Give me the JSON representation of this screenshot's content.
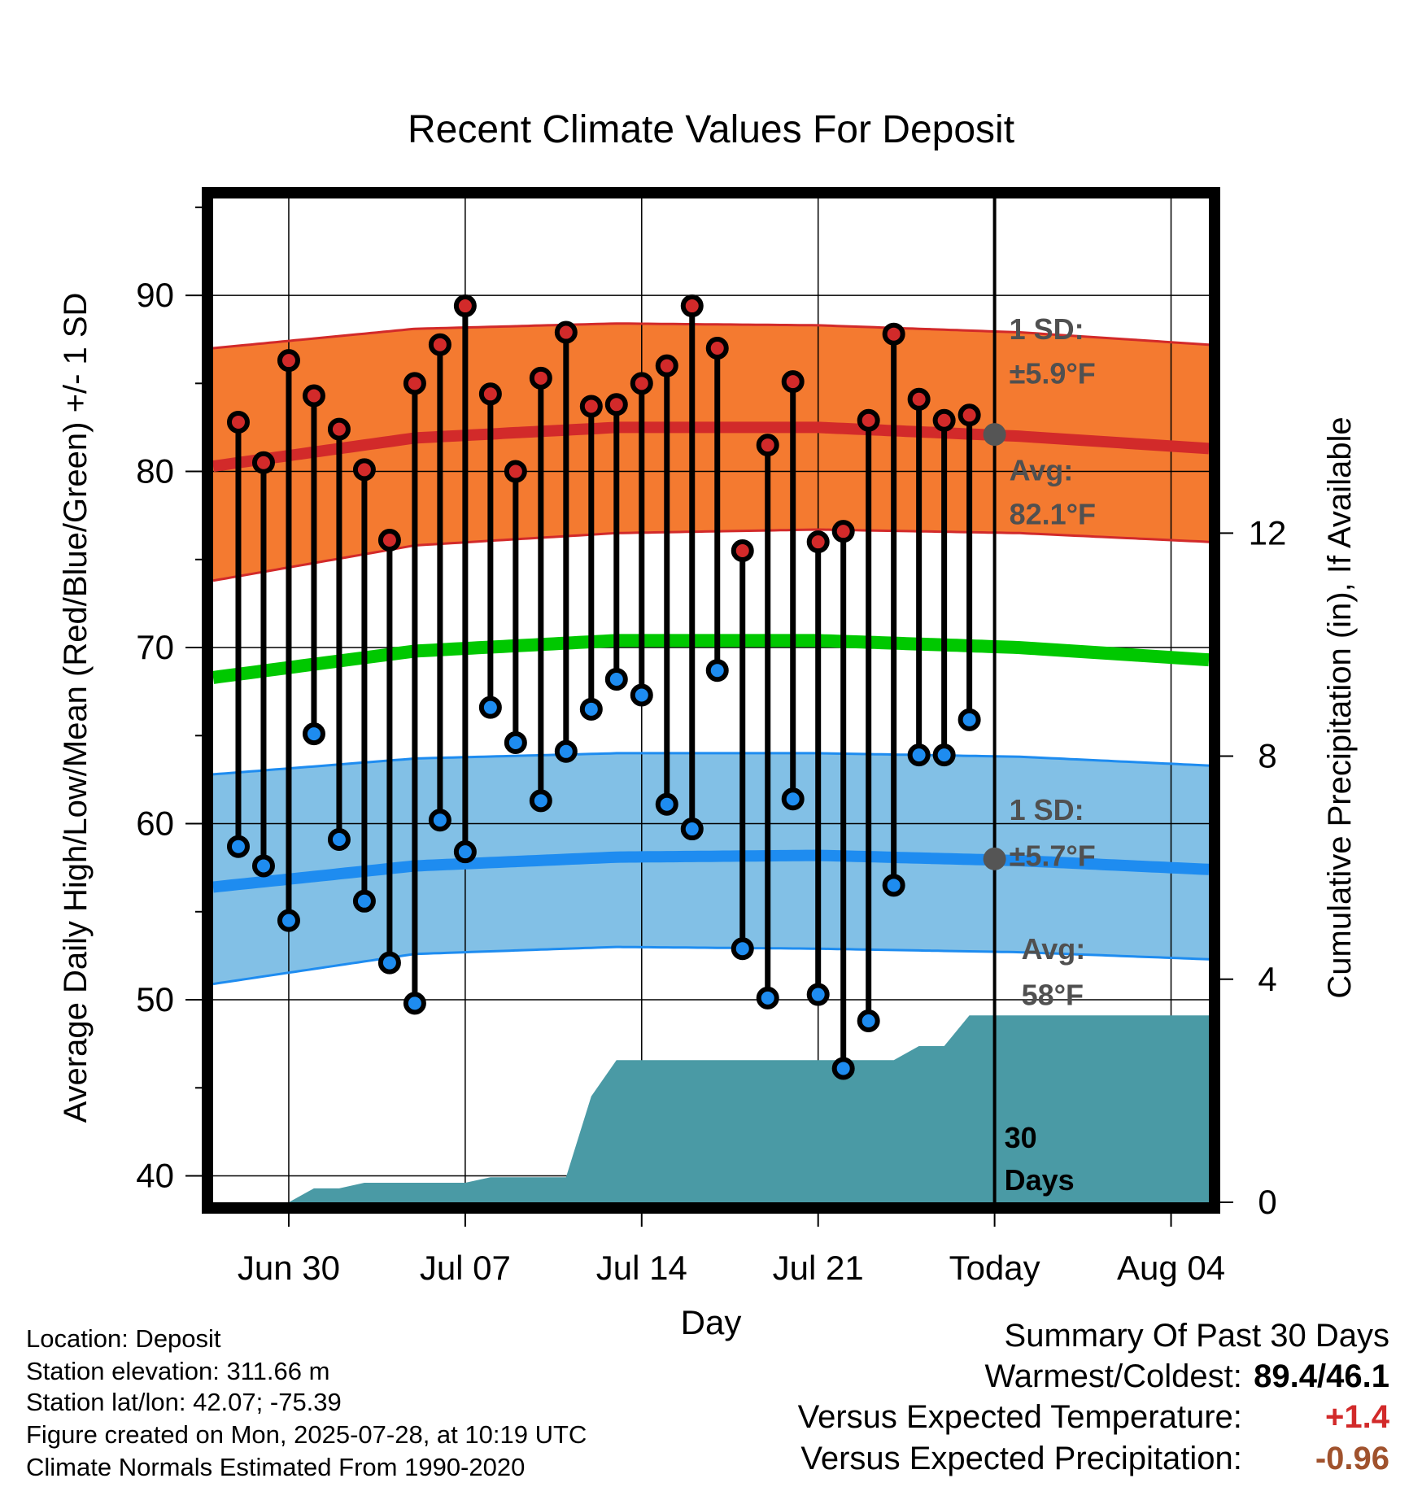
{
  "chart_data": {
    "type": "line",
    "title": "Recent Climate Values For Deposit",
    "xlabel": "Day",
    "ylabel": "Average Daily High/Low/Mean (Red/Blue/Green) +/- 1 SD",
    "y2label": "Cumulative Precipitation (in), If Available",
    "ylim": [
      38.5,
      95.5
    ],
    "y2lim": [
      0,
      18
    ],
    "yticks": [
      40,
      50,
      60,
      70,
      80,
      90
    ],
    "y2ticks": [
      0,
      4,
      8,
      12
    ],
    "x_tick_labels": [
      "Jun 30",
      "Jul 07",
      "Jul 14",
      "Jul 21",
      "Today",
      "Aug 04"
    ],
    "x_tick_days": [
      3,
      10,
      17,
      24,
      31,
      38
    ],
    "grid": true,
    "dates": [
      "Jun 29",
      "Jun 30",
      "Jul 01",
      "Jul 02",
      "Jul 03",
      "Jul 04",
      "Jul 05",
      "Jul 06",
      "Jul 07",
      "Jul 08",
      "Jul 09",
      "Jul 10",
      "Jul 11",
      "Jul 12",
      "Jul 13",
      "Jul 14",
      "Jul 15",
      "Jul 16",
      "Jul 17",
      "Jul 18",
      "Jul 19",
      "Jul 20",
      "Jul 21",
      "Jul 22",
      "Jul 23",
      "Jul 24",
      "Jul 25",
      "Jul 26",
      "Jul 27",
      "Jul 28"
    ],
    "daily_high": [
      82.8,
      80.5,
      86.3,
      84.3,
      82.4,
      80.1,
      76.1,
      85.0,
      87.2,
      89.4,
      84.4,
      80.0,
      85.3,
      87.9,
      83.7,
      83.8,
      85.0,
      86.0,
      89.4,
      87.0,
      75.5,
      81.5,
      85.1,
      76.0,
      76.6,
      82.9,
      87.8,
      84.1,
      82.9,
      83.2
    ],
    "daily_low": [
      58.7,
      57.6,
      54.5,
      65.1,
      59.1,
      55.6,
      52.1,
      49.8,
      60.2,
      58.4,
      66.6,
      64.6,
      61.3,
      64.1,
      66.5,
      68.2,
      67.3,
      61.1,
      59.7,
      68.7,
      52.9,
      50.1,
      61.4,
      50.3,
      46.1,
      48.8,
      56.5,
      63.9,
      63.9,
      65.9
    ],
    "normal_high": {
      "day": [
        0,
        8,
        16,
        24,
        32,
        39.5
      ],
      "avg": [
        80.3,
        81.9,
        82.5,
        82.5,
        82.0,
        81.3
      ],
      "plus_1sd": [
        87.0,
        88.1,
        88.4,
        88.3,
        87.9,
        87.2
      ],
      "minus_1sd": [
        73.8,
        75.8,
        76.5,
        76.7,
        76.5,
        76.0
      ]
    },
    "normal_mean": {
      "day": [
        0,
        8,
        16,
        24,
        32,
        39.5
      ],
      "avg": [
        68.3,
        69.8,
        70.4,
        70.4,
        70.0,
        69.3
      ]
    },
    "normal_low": {
      "day": [
        0,
        8,
        16,
        24,
        32,
        39.5
      ],
      "avg": [
        56.4,
        57.6,
        58.1,
        58.2,
        57.9,
        57.4
      ],
      "plus_1sd": [
        62.8,
        63.7,
        64.0,
        64.0,
        63.8,
        63.3
      ],
      "minus_1sd": [
        50.9,
        52.6,
        53.0,
        52.9,
        52.7,
        52.3
      ]
    },
    "cumulative_precip": {
      "day": [
        0,
        3,
        4,
        5,
        6,
        7,
        10,
        11,
        14,
        15,
        16,
        17,
        27,
        28,
        29,
        30,
        39.5
      ],
      "value": [
        0,
        0,
        0.25,
        0.25,
        0.35,
        0.35,
        0.35,
        0.45,
        0.45,
        1.9,
        2.55,
        2.55,
        2.55,
        2.8,
        2.8,
        3.35,
        3.35
      ]
    },
    "annotations": {
      "high_sd_label": "1 SD:",
      "high_sd_value": "±5.9°F",
      "high_avg_label": "Avg:",
      "high_avg_value": "82.1°F",
      "low_sd_label": "1 SD:",
      "low_sd_value": "±5.7°F",
      "low_avg_label": "Avg:",
      "low_avg_value": "58°F",
      "today_high_avg": 82.1,
      "today_low_avg": 58.0,
      "window_label_1": "30",
      "window_label_2": "Days"
    },
    "colors": {
      "high_band": "#f47a30",
      "high_line": "#d22a2a",
      "low_band": "#82c0e6",
      "low_line": "#1e8cf0",
      "mean_line": "#00c800",
      "precip": "#4a9aa5",
      "high_dot": "#d22a2a",
      "low_dot": "#1e8cf0",
      "avg_dot": "#555555",
      "annotation_text": "#505050",
      "temp_anomaly": "#d22a2a",
      "precip_anomaly": "#a0522d"
    }
  },
  "info": {
    "location": "Location: Deposit",
    "elevation": "Station elevation: 311.66 m",
    "latlon": "Station lat/lon: 42.07; -75.39",
    "created": "Figure created on Mon, 2025-07-28, at 10:19 UTC",
    "normals": "Climate Normals Estimated From 1990-2020"
  },
  "summary": {
    "title": "Summary Of Past 30 Days",
    "warm_cold_label": "Warmest/Coldest:",
    "warm_cold_value": "89.4/46.1",
    "temp_label": "Versus Expected Temperature:",
    "temp_value": "+1.4",
    "precip_label": "Versus Expected Precipitation:",
    "precip_value": "-0.96"
  }
}
